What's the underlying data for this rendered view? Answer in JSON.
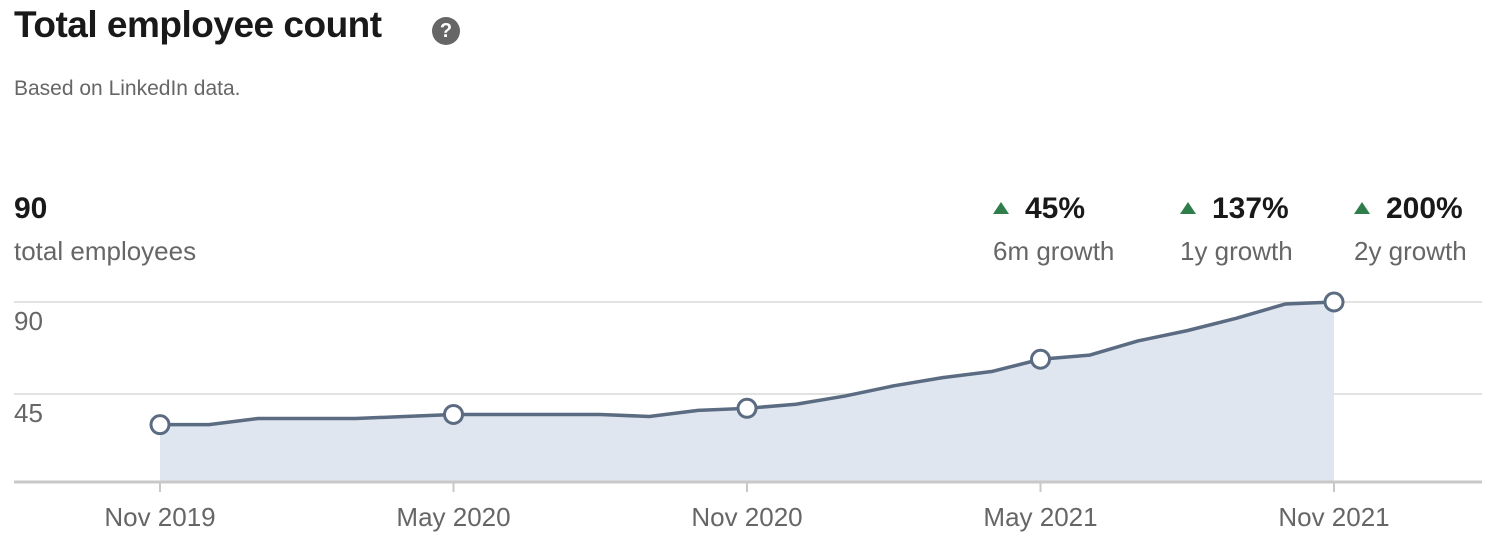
{
  "title": "Total employee count",
  "subtitle": "Based on LinkedIn data.",
  "summary": {
    "value": "90",
    "label": "total employees"
  },
  "growth": [
    {
      "value": "45%",
      "label": "6m growth"
    },
    {
      "value": "137%",
      "label": "1y growth"
    },
    {
      "value": "200%",
      "label": "2y growth"
    }
  ],
  "chart_data": {
    "type": "area",
    "categories": [
      "Nov 2019",
      null,
      null,
      null,
      null,
      null,
      "May 2020",
      null,
      null,
      null,
      null,
      null,
      "Nov 2020",
      null,
      null,
      null,
      null,
      null,
      "May 2021",
      null,
      null,
      null,
      null,
      null,
      "Nov 2021"
    ],
    "series": [
      {
        "color": "#5b6b82",
        "fill": "#dfe6f0",
        "values": [
          30,
          30,
          33,
          33,
          33,
          34,
          35,
          35,
          35,
          35,
          34,
          37,
          38,
          40,
          44,
          49,
          53,
          56,
          62,
          64,
          71,
          76,
          82,
          89,
          90
        ]
      }
    ],
    "ylim": [
      0,
      90
    ],
    "yticks": [
      45,
      90
    ],
    "grid": true
  }
}
